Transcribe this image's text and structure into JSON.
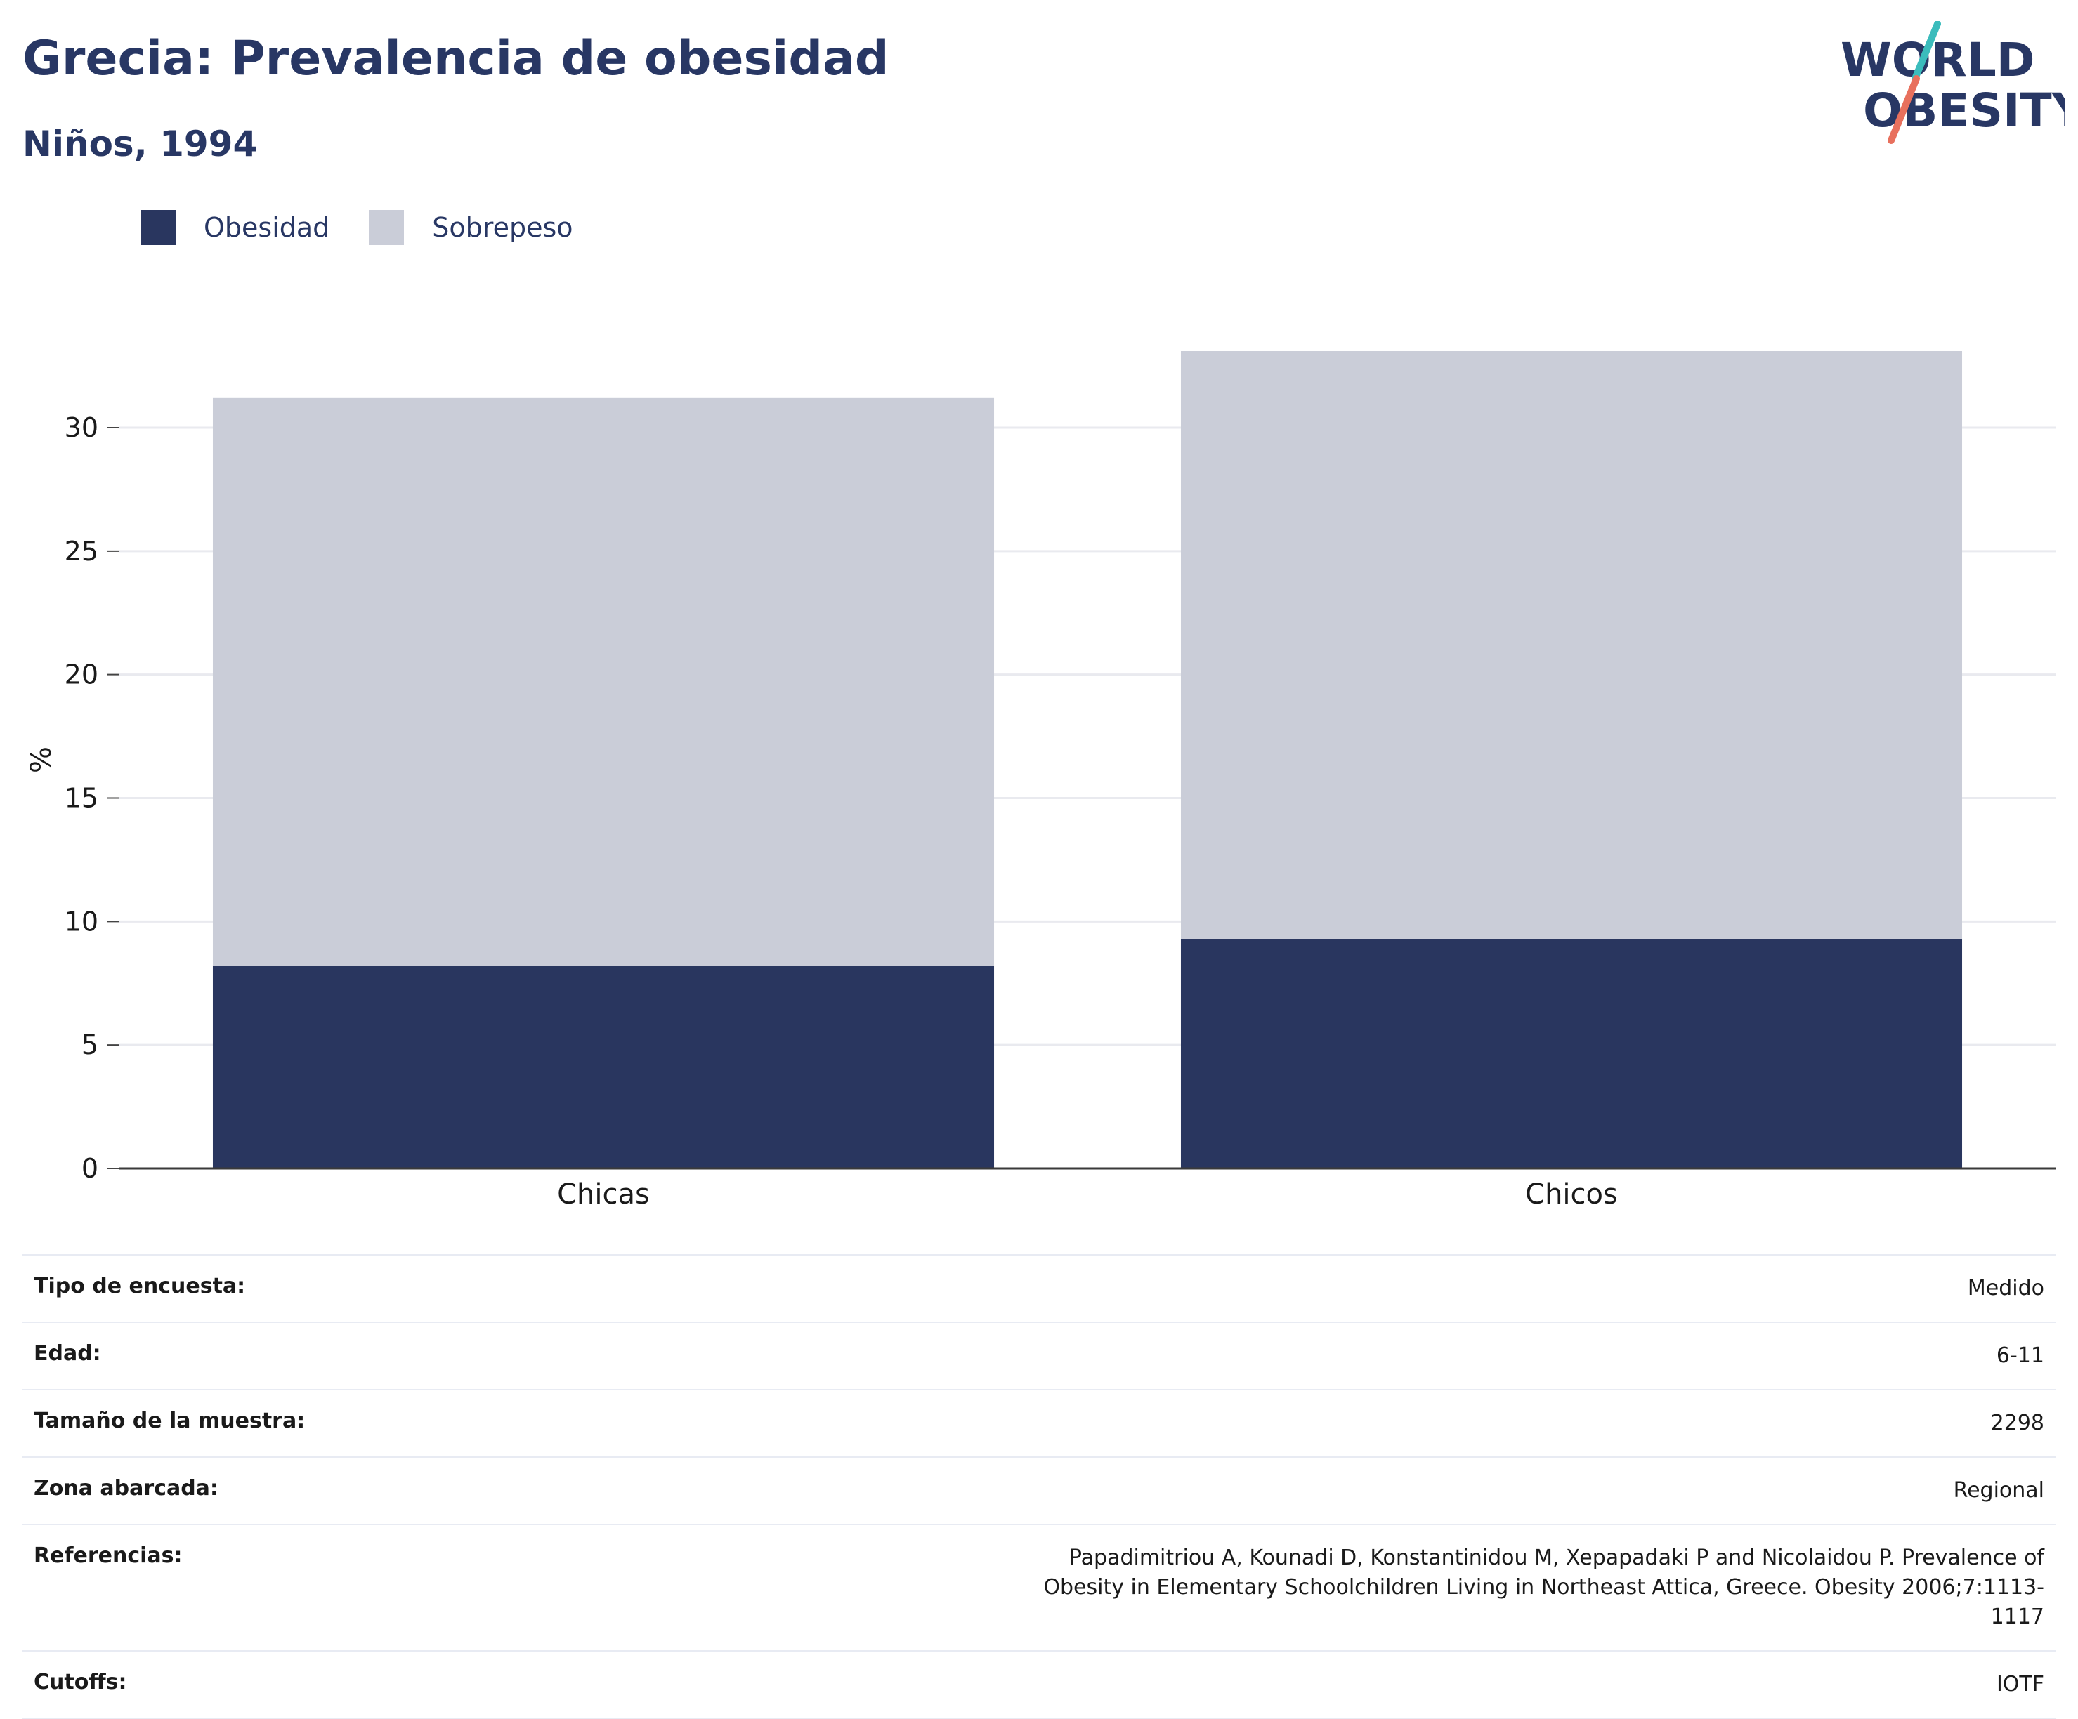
{
  "header": {
    "title": "Grecia: Prevalencia de obesidad",
    "subtitle": "Niños, 1994"
  },
  "logo": {
    "line1": "WORLD",
    "line2": "OBESITY",
    "icon": "world-obesity-logo"
  },
  "colors": {
    "obesidad": "#29365f",
    "sobrepeso": "#cacdd8",
    "text": "#283764",
    "logo_teal": "#3bbcbc",
    "logo_coral": "#e8705d"
  },
  "legend": [
    {
      "label": "Obesidad",
      "color": "#29365f"
    },
    {
      "label": "Sobrepeso",
      "color": "#cacdd8"
    }
  ],
  "chart_data": {
    "type": "bar",
    "stacked": true,
    "categories": [
      "Chicas",
      "Chicos"
    ],
    "series": [
      {
        "name": "Obesidad",
        "values": [
          8.2,
          9.3
        ],
        "color": "#29365f"
      },
      {
        "name": "Sobrepeso",
        "values": [
          23.0,
          23.8
        ],
        "color": "#cacdd8"
      }
    ],
    "title": "Grecia: Prevalencia de obesidad",
    "subtitle": "Niños, 1994",
    "xlabel": "",
    "ylabel": "%",
    "ylim": [
      0,
      33.1
    ],
    "yticks": [
      0,
      5,
      10,
      15,
      20,
      25,
      30
    ],
    "grid": true,
    "legend_position": "top-left"
  },
  "info": [
    {
      "label": "Tipo de encuesta:",
      "value": "Medido"
    },
    {
      "label": "Edad:",
      "value": "6-11"
    },
    {
      "label": "Tamaño de la muestra:",
      "value": "2298"
    },
    {
      "label": "Zona abarcada:",
      "value": "Regional"
    },
    {
      "label": "Referencias:",
      "value": "Papadimitriou A, Kounadi D, Konstantinidou M, Xepapadaki P and Nicolaidou P. Prevalence of Obesity in Elementary Schoolchildren Living in Northeast Attica, Greece. Obesity 2006;7:1113-1117"
    },
    {
      "label": "Cutoffs:",
      "value": "IOTF"
    }
  ]
}
